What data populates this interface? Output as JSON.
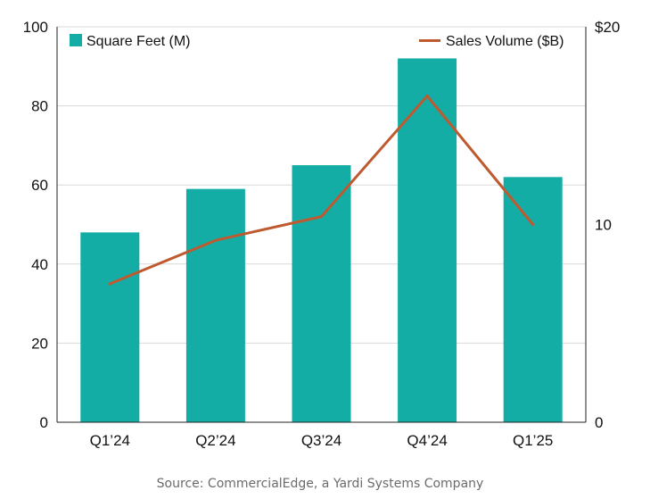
{
  "chart_data": {
    "type": "bar",
    "categories": [
      "Q1’24",
      "Q2’24",
      "Q3’24",
      "Q4’24",
      "Q1’25"
    ],
    "series": [
      {
        "name": "Square Feet (M)",
        "type": "bar",
        "axis": "left",
        "color": "#14ada6",
        "values": [
          48,
          59,
          65,
          92,
          62
        ]
      },
      {
        "name": "Sales Volume ($B)",
        "type": "line",
        "axis": "right",
        "color": "#bf5a30",
        "values": [
          7.0,
          9.2,
          10.4,
          16.5,
          10.0
        ]
      }
    ],
    "y_left": {
      "ylim": [
        0,
        100
      ],
      "ticks": [
        0,
        20,
        40,
        60,
        80,
        100
      ],
      "tick_labels": [
        "0",
        "20",
        "40",
        "60",
        "80",
        "100"
      ]
    },
    "y_right": {
      "ylim": [
        0,
        20
      ],
      "ticks": [
        0,
        10,
        20
      ],
      "tick_labels": [
        "0",
        "10",
        "$20"
      ]
    },
    "grid": true,
    "legend_placement": "top",
    "source": "Source: CommercialEdge, a Yardi Systems Company"
  }
}
